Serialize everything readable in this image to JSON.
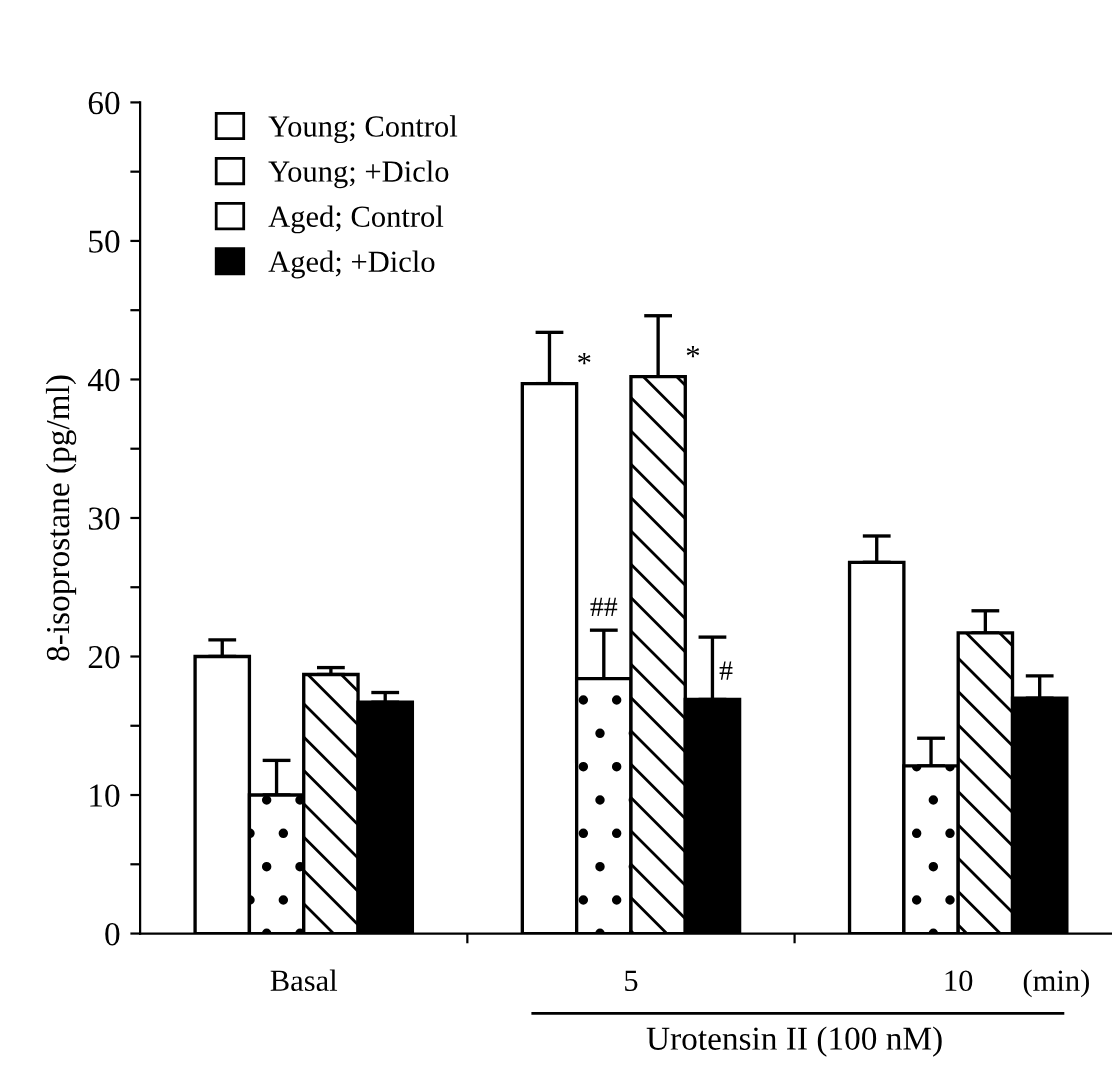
{
  "chart_data": {
    "type": "bar",
    "ylabel": "8-isoprostane (pg/ml)",
    "categories": [
      "Basal",
      "5",
      "10"
    ],
    "series": [
      {
        "name": "Young; Control",
        "color": "#ffffff",
        "values": [
          20.0,
          39.7,
          26.8
        ],
        "errors": [
          [
            20.0,
            21.2
          ],
          [
            39.7,
            43.4
          ],
          [
            26.8,
            28.7
          ]
        ]
      },
      {
        "name": "Young; +Diclo",
        "color": "#ffffff",
        "values": [
          10.0,
          18.4,
          12.1
        ],
        "errors": [
          [
            10.0,
            12.5
          ],
          [
            18.4,
            21.9
          ],
          [
            12.1,
            14.1
          ]
        ]
      },
      {
        "name": "Aged; Control",
        "color": "#ffffff",
        "values": [
          18.7,
          40.2,
          21.7
        ],
        "errors": [
          [
            18.7,
            19.2
          ],
          [
            40.2,
            44.6
          ],
          [
            21.7,
            23.3
          ]
        ]
      },
      {
        "name": "Aged; +Diclo",
        "color": "#000000",
        "values": [
          16.7,
          16.9,
          17.0
        ],
        "errors": [
          [
            16.7,
            17.4
          ],
          [
            16.9,
            21.4
          ],
          [
            17.0,
            18.6
          ]
        ]
      }
    ],
    "ylim": [
      0,
      60
    ],
    "yticks": [
      0,
      {
        "value": 5,
        "label": null
      },
      10,
      {
        "value": 15,
        "label": null
      },
      20,
      {
        "value": 25,
        "label": null
      },
      30,
      {
        "value": 35,
        "label": null
      },
      40,
      {
        "value": 45,
        "label": null
      },
      50,
      {
        "value": 55,
        "label": null
      },
      60
    ],
    "annotations": [
      {
        "text": "*",
        "x": "5",
        "y": 39.7
      },
      {
        "text": "*",
        "x": "5",
        "y": 40.2
      },
      {
        "text": "##",
        "x": "5",
        "y": 18.4
      },
      "#",
      "(min)",
      "Urotensin II (100 nM)"
    ],
    "legend": "top left",
    "grid": false
  }
}
